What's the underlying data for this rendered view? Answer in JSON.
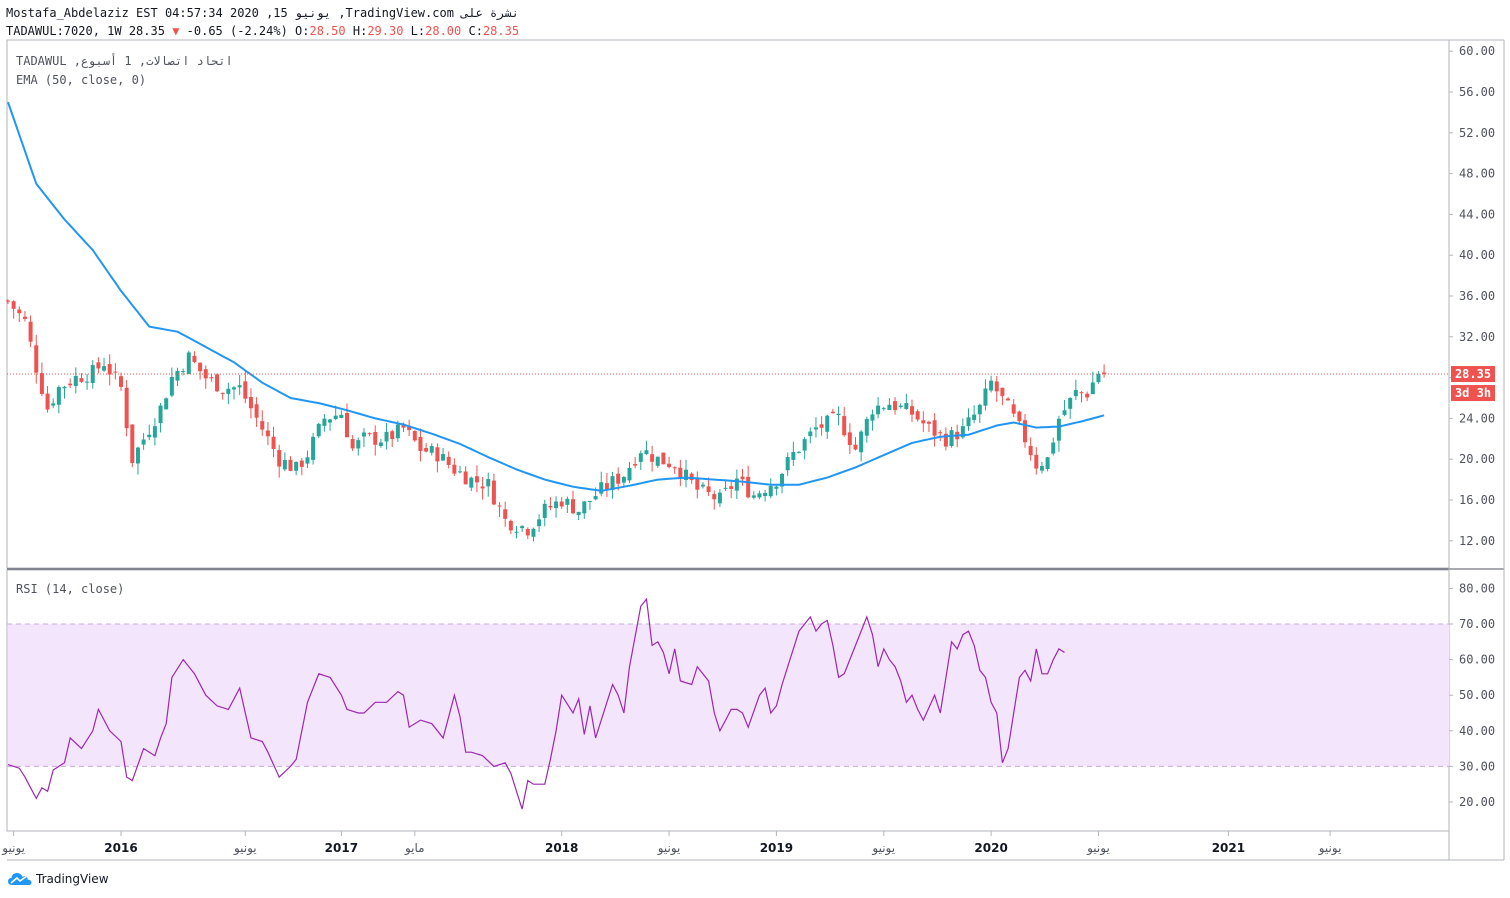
{
  "header": {
    "line1": "Mostafa_Abdelaziz EST 04:57:34 2020 ,15 يونيو ,TradingView.com نشرة على",
    "symbol": "TADAWUL:7020, 1W 28.35",
    "arrow": "▼",
    "change": "-0.65 (-2.24%)",
    "o_label": "O:",
    "o_val": "28.50",
    "h_label": "H:",
    "h_val": "29.30",
    "l_label": "L:",
    "l_val": "28.00",
    "c_label": "C:",
    "c_val": "28.35"
  },
  "legend": {
    "main": "TADAWUL ,اتحاد اتصالات, 1 أسبوع",
    "ema": "EMA (50, close, 0)",
    "rsi": "RSI (14, close)"
  },
  "price_badge": "28.35",
  "countdown_badge": "3d 3h",
  "colors": {
    "up": "#26a69a",
    "down": "#ef5350",
    "ema": "#2196f3",
    "rsi": "#9c27b0",
    "rsi_band": "#f3e5fb",
    "price_line": "#ef5350"
  },
  "logo_text": "TradingView",
  "chart_data": [
    {
      "type": "candlestick",
      "title": "TADAWUL:7020 1W",
      "ylim": [
        10,
        61
      ],
      "y_ticks": [
        "60.00",
        "56.00",
        "52.00",
        "48.00",
        "44.00",
        "40.00",
        "36.00",
        "32.00",
        "28.00",
        "24.00",
        "20.00",
        "16.00",
        "12.00"
      ],
      "last_price": 28.35,
      "x_tick_labels": [
        "يونيو",
        "2016",
        "يونيو",
        "2017",
        "مايو",
        "2018",
        "يونيو",
        "2019",
        "يونيو",
        "2020",
        "يونيو",
        "2021",
        "يونيو"
      ],
      "x_tick_weeks": [
        1,
        20,
        42,
        59,
        72,
        98,
        117,
        136,
        155,
        174,
        193,
        216,
        234
      ],
      "anchors": [
        [
          0,
          35.5
        ],
        [
          3,
          33.5
        ],
        [
          5,
          29
        ],
        [
          7,
          25
        ],
        [
          9,
          27
        ],
        [
          12,
          28
        ],
        [
          15,
          28.5
        ],
        [
          17,
          29.5
        ],
        [
          20,
          27
        ],
        [
          22,
          20
        ],
        [
          24,
          22
        ],
        [
          27,
          25
        ],
        [
          29,
          28
        ],
        [
          32,
          30
        ],
        [
          35,
          28
        ],
        [
          38,
          27
        ],
        [
          41,
          27
        ],
        [
          43,
          25
        ],
        [
          45,
          23
        ],
        [
          48,
          20
        ],
        [
          51,
          19
        ],
        [
          53,
          20.5
        ],
        [
          56,
          24
        ],
        [
          59,
          24.5
        ],
        [
          61,
          21
        ],
        [
          63,
          22
        ],
        [
          67,
          22
        ],
        [
          70,
          23
        ],
        [
          73,
          21
        ],
        [
          76,
          20.5
        ],
        [
          79,
          19
        ],
        [
          82,
          18
        ],
        [
          85,
          17.5
        ],
        [
          88,
          14
        ],
        [
          92,
          13.2
        ],
        [
          95,
          15
        ],
        [
          98,
          16
        ],
        [
          101,
          15
        ],
        [
          105,
          17
        ],
        [
          109,
          18.5
        ],
        [
          112,
          21
        ],
        [
          115,
          20
        ],
        [
          118,
          19.5
        ],
        [
          122,
          17
        ],
        [
          126,
          16
        ],
        [
          129,
          18
        ],
        [
          132,
          16.5
        ],
        [
          136,
          18
        ],
        [
          139,
          20.5
        ],
        [
          143,
          23
        ],
        [
          147,
          24
        ],
        [
          150,
          21
        ],
        [
          153,
          25
        ],
        [
          156,
          25.5
        ],
        [
          160,
          24.5
        ],
        [
          163,
          23
        ],
        [
          166,
          22
        ],
        [
          169,
          22.8
        ],
        [
          172,
          25
        ],
        [
          174,
          27.5
        ],
        [
          177,
          25
        ],
        [
          180,
          22
        ],
        [
          182,
          19.5
        ],
        [
          184,
          20
        ],
        [
          186,
          24
        ],
        [
          189,
          26.5
        ],
        [
          191,
          26.5
        ],
        [
          193,
          28.5
        ],
        [
          194,
          28.35
        ]
      ],
      "ema": {
        "name": "EMA (50, close, 0)",
        "anchors": [
          [
            0,
            55
          ],
          [
            5,
            47
          ],
          [
            10,
            43.5
          ],
          [
            15,
            40.5
          ],
          [
            20,
            36.5
          ],
          [
            25,
            33
          ],
          [
            30,
            32.5
          ],
          [
            35,
            31
          ],
          [
            40,
            29.5
          ],
          [
            45,
            27.5
          ],
          [
            50,
            26
          ],
          [
            55,
            25.5
          ],
          [
            60,
            24.8
          ],
          [
            65,
            24
          ],
          [
            70,
            23.4
          ],
          [
            75,
            22.5
          ],
          [
            80,
            21.5
          ],
          [
            85,
            20.2
          ],
          [
            90,
            19
          ],
          [
            95,
            18
          ],
          [
            100,
            17.3
          ],
          [
            105,
            16.9
          ],
          [
            110,
            17.4
          ],
          [
            115,
            18
          ],
          [
            120,
            18.2
          ],
          [
            125,
            18
          ],
          [
            130,
            17.8
          ],
          [
            135,
            17.5
          ],
          [
            140,
            17.5
          ],
          [
            145,
            18.2
          ],
          [
            150,
            19.2
          ],
          [
            155,
            20.4
          ],
          [
            160,
            21.6
          ],
          [
            165,
            22.2
          ],
          [
            170,
            22.4
          ],
          [
            175,
            23.3
          ],
          [
            178,
            23.6
          ],
          [
            182,
            23.1
          ],
          [
            186,
            23.2
          ],
          [
            190,
            23.7
          ],
          [
            194,
            24.3
          ]
        ]
      }
    },
    {
      "type": "line",
      "title": "RSI (14, close)",
      "ylim": [
        13,
        83
      ],
      "y_ticks": [
        "80.00",
        "70.00",
        "60.00",
        "50.00",
        "40.00",
        "30.00",
        "20.00"
      ],
      "band": [
        30,
        70
      ],
      "series": [
        {
          "name": "RSI",
          "anchors": [
            [
              0,
              30.5
            ],
            [
              2,
              29.5
            ],
            [
              3,
              27
            ],
            [
              4,
              24
            ],
            [
              5,
              21
            ],
            [
              6,
              24
            ],
            [
              7,
              23
            ],
            [
              8,
              29
            ],
            [
              10,
              31
            ],
            [
              11,
              38
            ],
            [
              13,
              35
            ],
            [
              15,
              40
            ],
            [
              16,
              46
            ],
            [
              18,
              40
            ],
            [
              20,
              37
            ],
            [
              21,
              27
            ],
            [
              22,
              26
            ],
            [
              24,
              35
            ],
            [
              26,
              33
            ],
            [
              27,
              38
            ],
            [
              28,
              42
            ],
            [
              29,
              55
            ],
            [
              31,
              60
            ],
            [
              33,
              56
            ],
            [
              35,
              50
            ],
            [
              37,
              47
            ],
            [
              39,
              46
            ],
            [
              41,
              52
            ],
            [
              42,
              45
            ],
            [
              43,
              38
            ],
            [
              45,
              37
            ],
            [
              46,
              34
            ],
            [
              48,
              27
            ],
            [
              50,
              30
            ],
            [
              51,
              32
            ],
            [
              53,
              48
            ],
            [
              55,
              56
            ],
            [
              57,
              55
            ],
            [
              59,
              50
            ],
            [
              60,
              46
            ],
            [
              62,
              45
            ],
            [
              63,
              45
            ],
            [
              65,
              48
            ],
            [
              67,
              48
            ],
            [
              69,
              51
            ],
            [
              70,
              50
            ],
            [
              71,
              41
            ],
            [
              73,
              43
            ],
            [
              75,
              42
            ],
            [
              77,
              38
            ],
            [
              79,
              50
            ],
            [
              80,
              44
            ],
            [
              81,
              34
            ],
            [
              82,
              34
            ],
            [
              84,
              33
            ],
            [
              86,
              30
            ],
            [
              88,
              31
            ],
            [
              89,
              28
            ],
            [
              90,
              23
            ],
            [
              91,
              18
            ],
            [
              92,
              26
            ],
            [
              93,
              25
            ],
            [
              95,
              25
            ],
            [
              96,
              32
            ],
            [
              97,
              40
            ],
            [
              98,
              50
            ],
            [
              100,
              45
            ],
            [
              101,
              49
            ],
            [
              102,
              39
            ],
            [
              103,
              47
            ],
            [
              104,
              38
            ],
            [
              106,
              48
            ],
            [
              107,
              53
            ],
            [
              108,
              50
            ],
            [
              109,
              45
            ],
            [
              110,
              58
            ],
            [
              112,
              75
            ],
            [
              113,
              77
            ],
            [
              114,
              64
            ],
            [
              115,
              65
            ],
            [
              116,
              62
            ],
            [
              117,
              56
            ],
            [
              118,
              63
            ],
            [
              119,
              54
            ],
            [
              121,
              53
            ],
            [
              122,
              58
            ],
            [
              124,
              54
            ],
            [
              125,
              45
            ],
            [
              126,
              40
            ],
            [
              127,
              43
            ],
            [
              128,
              46
            ],
            [
              129,
              46
            ],
            [
              130,
              45
            ],
            [
              131,
              41
            ],
            [
              133,
              50
            ],
            [
              134,
              52
            ],
            [
              135,
              45
            ],
            [
              136,
              47
            ],
            [
              137,
              53
            ],
            [
              138,
              58
            ],
            [
              140,
              68
            ],
            [
              142,
              72
            ],
            [
              143,
              68
            ],
            [
              144,
              70
            ],
            [
              145,
              71
            ],
            [
              146,
              64
            ],
            [
              147,
              55
            ],
            [
              148,
              56
            ],
            [
              150,
              64
            ],
            [
              152,
              72
            ],
            [
              153,
              67
            ],
            [
              154,
              58
            ],
            [
              155,
              63
            ],
            [
              156,
              60
            ],
            [
              157,
              58
            ],
            [
              158,
              54
            ],
            [
              159,
              48
            ],
            [
              160,
              50
            ],
            [
              161,
              46
            ],
            [
              162,
              43
            ],
            [
              164,
              50
            ],
            [
              165,
              45
            ],
            [
              167,
              65
            ],
            [
              168,
              63
            ],
            [
              169,
              67
            ],
            [
              170,
              68
            ],
            [
              171,
              64
            ],
            [
              172,
              57
            ],
            [
              173,
              55
            ],
            [
              174,
              48
            ],
            [
              175,
              45
            ],
            [
              176,
              31
            ],
            [
              177,
              35
            ],
            [
              178,
              45
            ],
            [
              179,
              55
            ],
            [
              180,
              57
            ],
            [
              181,
              54
            ],
            [
              182,
              63
            ],
            [
              183,
              56
            ],
            [
              184,
              56
            ],
            [
              185,
              60
            ],
            [
              186,
              63
            ],
            [
              187,
              62
            ]
          ]
        }
      ]
    }
  ]
}
